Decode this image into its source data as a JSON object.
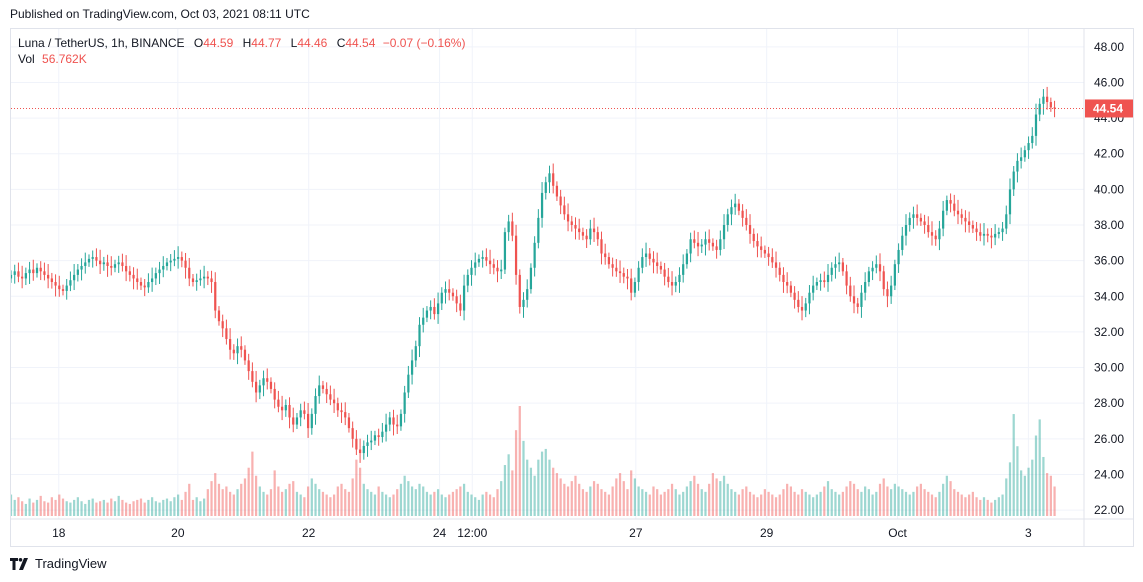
{
  "published": "Published on TradingView.com, Oct 03, 2021 08:11 UTC",
  "legend": {
    "symbol": "Luna / TetherUS, 1h, BINANCE",
    "o_label": "O",
    "o_value": "44.59",
    "h_label": "H",
    "h_value": "44.77",
    "l_label": "L",
    "l_value": "44.46",
    "c_label": "C",
    "c_value": "44.54",
    "change": "−0.07 (−0.16%)",
    "vol_label": "Vol",
    "vol_value": "56.762K"
  },
  "footer": {
    "brand": "TradingView"
  },
  "colors": {
    "up": "#26a69a",
    "down": "#ef5350",
    "grid": "#f0f3fa",
    "text": "#131722"
  },
  "chart_data": {
    "type": "candlestick",
    "symbol": "Luna / TetherUS",
    "interval": "1h",
    "exchange": "BINANCE",
    "ylim": [
      21.5,
      49
    ],
    "y_ticks": [
      "48.00",
      "46.00",
      "44.00",
      "42.00",
      "40.00",
      "38.00",
      "36.00",
      "34.00",
      "32.00",
      "30.00",
      "28.00",
      "26.00",
      "24.00",
      "22.00"
    ],
    "x_ticks": [
      {
        "label": "18",
        "x": 0.18
      },
      {
        "label": "20",
        "x": 2.0
      },
      {
        "label": "22",
        "x": 4.0
      },
      {
        "label": "24",
        "x": 6.0
      },
      {
        "label": "12:00",
        "x": 6.5
      },
      {
        "label": "27",
        "x": 9.0
      },
      {
        "label": "29",
        "x": 11.0
      },
      {
        "label": "Oct",
        "x": 13.0
      },
      {
        "label": "3",
        "x": 15.0
      }
    ],
    "x_range_days": [
      -0.55,
      15.85
    ],
    "last_price": "44.54",
    "grid": true,
    "closes": [
      35.2,
      35.4,
      35.1,
      35.0,
      35.3,
      35.5,
      35.3,
      35.6,
      35.4,
      35.2,
      35.0,
      34.8,
      34.6,
      34.4,
      34.3,
      34.6,
      34.9,
      35.2,
      35.5,
      35.7,
      35.9,
      36.1,
      36.2,
      36.0,
      35.8,
      35.9,
      35.7,
      35.6,
      35.8,
      35.9,
      35.7,
      35.4,
      35.2,
      35.0,
      34.8,
      34.6,
      34.5,
      34.8,
      35.0,
      35.3,
      35.5,
      35.7,
      35.9,
      36.0,
      36.1,
      36.2,
      36.0,
      35.6,
      35.0,
      34.8,
      34.9,
      35.0,
      35.1,
      35.0,
      34.8,
      33.2,
      32.6,
      32.2,
      31.6,
      31.0,
      30.8,
      31.2,
      31.0,
      30.4,
      29.8,
      29.2,
      28.6,
      29.0,
      29.4,
      29.2,
      28.8,
      28.2,
      27.8,
      27.6,
      27.9,
      27.2,
      26.8,
      27.2,
      27.6,
      27.4,
      26.6,
      27.4,
      28.4,
      29.0,
      28.8,
      28.5,
      28.2,
      28.0,
      27.6,
      27.5,
      27.2,
      26.6,
      26.0,
      25.4,
      25.2,
      25.6,
      25.8,
      25.9,
      26.2,
      26.1,
      26.4,
      26.8,
      27.2,
      26.8,
      26.7,
      27.4,
      28.6,
      29.6,
      30.4,
      31.2,
      32.4,
      32.8,
      33.2,
      33.4,
      33.0,
      33.6,
      34.2,
      34.4,
      34.2,
      34.0,
      33.6,
      33.2,
      34.6,
      35.2,
      35.6,
      35.9,
      36.1,
      36.2,
      36.0,
      35.8,
      35.6,
      35.4,
      35.5,
      37.6,
      38.2,
      37.4,
      35.2,
      33.4,
      33.8,
      34.4,
      35.6,
      37.0,
      38.4,
      39.8,
      40.4,
      40.9,
      40.2,
      39.6,
      39.1,
      38.6,
      38.2,
      38.0,
      37.8,
      37.6,
      37.4,
      37.2,
      37.8,
      37.6,
      37.2,
      36.4,
      36.2,
      35.8,
      35.6,
      35.4,
      35.3,
      35.1,
      35.0,
      34.2,
      34.8,
      35.6,
      36.2,
      36.4,
      36.1,
      35.9,
      35.7,
      35.5,
      35.1,
      34.8,
      34.6,
      34.8,
      35.2,
      35.8,
      36.4,
      37.2,
      37.0,
      36.8,
      36.9,
      37.2,
      37.0,
      36.8,
      36.6,
      37.2,
      38.0,
      38.6,
      39.0,
      39.2,
      38.8,
      38.4,
      38.0,
      37.5,
      37.1,
      36.8,
      36.6,
      36.4,
      36.2,
      35.9,
      35.6,
      35.2,
      34.8,
      34.6,
      34.2,
      33.8,
      33.4,
      33.2,
      33.6,
      34.2,
      34.6,
      34.8,
      34.9,
      34.8,
      35.2,
      35.6,
      35.8,
      35.9,
      35.4,
      34.6,
      34.0,
      33.6,
      33.4,
      34.2,
      34.8,
      35.4,
      35.6,
      35.8,
      35.4,
      34.4,
      34.0,
      34.6,
      35.8,
      36.6,
      37.4,
      38.0,
      38.4,
      38.6,
      38.4,
      38.2,
      38.0,
      37.6,
      37.4,
      37.2,
      37.8,
      38.8,
      39.4,
      39.2,
      38.8,
      38.6,
      38.4,
      38.2,
      38.0,
      37.8,
      37.6,
      37.4,
      37.5,
      37.4,
      37.3,
      37.5,
      37.6,
      37.8,
      38.6,
      40.0,
      41.0,
      41.6,
      41.8,
      42.2,
      42.6,
      43.0,
      44.2,
      44.8,
      45.2,
      44.9,
      44.6,
      44.54
    ],
    "volumes": [
      1.6,
      1.2,
      1.4,
      1.1,
      0.9,
      1.3,
      1.0,
      1.2,
      1.5,
      1.1,
      1.0,
      1.4,
      1.2,
      1.6,
      1.3,
      1.1,
      1.0,
      1.2,
      1.4,
      1.1,
      0.9,
      1.2,
      1.3,
      1.0,
      1.1,
      1.2,
      1.0,
      1.3,
      1.1,
      1.5,
      1.2,
      1.0,
      0.9,
      1.1,
      1.2,
      1.3,
      1.0,
      1.2,
      1.4,
      1.1,
      1.0,
      1.2,
      1.3,
      1.1,
      1.4,
      1.6,
      1.2,
      1.8,
      2.4,
      1.2,
      1.4,
      1.1,
      1.3,
      2.0,
      2.6,
      3.2,
      2.4,
      2.0,
      2.2,
      1.8,
      1.6,
      2.0,
      2.4,
      2.8,
      3.6,
      4.8,
      3.0,
      2.2,
      1.8,
      1.6,
      2.0,
      3.4,
      2.2,
      1.8,
      2.0,
      2.4,
      2.6,
      1.8,
      1.6,
      1.4,
      2.2,
      2.8,
      2.4,
      2.0,
      1.8,
      1.6,
      1.4,
      1.6,
      2.2,
      2.4,
      2.0,
      1.8,
      2.8,
      4.2,
      3.6,
      2.4,
      2.0,
      1.8,
      1.6,
      2.2,
      1.8,
      1.6,
      1.4,
      1.6,
      2.0,
      2.4,
      3.0,
      2.6,
      2.2,
      2.0,
      2.4,
      2.2,
      1.8,
      1.6,
      1.8,
      2.0,
      1.6,
      1.4,
      1.6,
      1.8,
      2.0,
      2.2,
      2.4,
      1.8,
      1.6,
      1.4,
      1.2,
      1.6,
      1.8,
      1.6,
      1.4,
      2.0,
      2.6,
      3.8,
      4.6,
      3.4,
      6.4,
      8.2,
      5.6,
      4.2,
      3.6,
      3.0,
      4.2,
      4.8,
      5.0,
      4.2,
      3.6,
      3.2,
      2.8,
      2.4,
      2.2,
      2.6,
      3.0,
      2.4,
      2.0,
      1.8,
      2.2,
      2.6,
      2.4,
      2.0,
      1.8,
      1.6,
      2.2,
      2.8,
      3.2,
      2.6,
      2.0,
      3.4,
      2.8,
      2.2,
      2.0,
      1.8,
      1.6,
      2.2,
      2.0,
      1.6,
      1.8,
      2.0,
      2.4,
      2.0,
      1.6,
      1.8,
      2.2,
      2.6,
      3.0,
      2.4,
      2.0,
      1.8,
      2.4,
      3.2,
      2.8,
      2.6,
      3.0,
      2.4,
      2.0,
      1.8,
      1.6,
      2.0,
      2.2,
      1.8,
      1.6,
      1.4,
      1.6,
      2.0,
      1.8,
      1.6,
      1.4,
      1.6,
      2.0,
      2.4,
      2.2,
      1.8,
      1.6,
      2.0,
      1.8,
      1.6,
      1.4,
      1.6,
      1.8,
      2.2,
      2.6,
      2.0,
      1.8,
      1.6,
      1.8,
      2.2,
      2.6,
      2.4,
      2.0,
      1.8,
      2.2,
      2.0,
      1.6,
      1.8,
      2.4,
      2.8,
      2.2,
      2.0,
      2.4,
      2.2,
      2.0,
      1.8,
      1.6,
      1.8,
      2.2,
      2.4,
      2.0,
      1.8,
      1.6,
      1.4,
      1.8,
      2.4,
      3.0,
      2.6,
      2.0,
      1.8,
      1.6,
      1.4,
      1.6,
      1.8,
      1.4,
      1.2,
      1.4,
      1.2,
      1.0,
      1.2,
      1.4,
      1.6,
      2.8,
      4.0,
      7.6,
      5.2,
      3.4,
      3.0,
      3.6,
      4.2,
      6.0,
      7.2,
      4.4,
      3.2,
      3.0,
      2.2
    ],
    "volume_max_ref": 8.2
  }
}
